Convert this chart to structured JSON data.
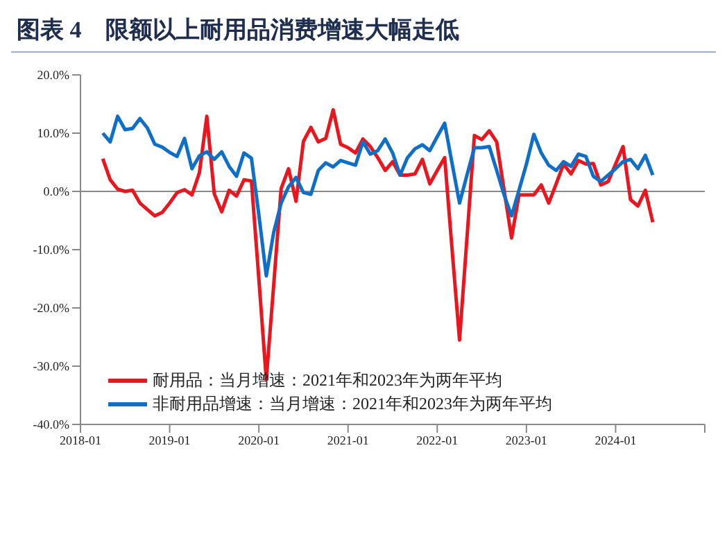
{
  "chart_data": {
    "type": "line",
    "title": "图表 4　限额以上耐用品消费增速大幅走低",
    "x": [
      "2018-04",
      "2018-05",
      "2018-06",
      "2018-07",
      "2018-08",
      "2018-09",
      "2018-10",
      "2018-11",
      "2018-12",
      "2019-01",
      "2019-02",
      "2019-03",
      "2019-04",
      "2019-05",
      "2019-06",
      "2019-07",
      "2019-08",
      "2019-09",
      "2019-10",
      "2019-11",
      "2019-12",
      "2020-01",
      "2020-02",
      "2020-03",
      "2020-04",
      "2020-05",
      "2020-06",
      "2020-07",
      "2020-08",
      "2020-09",
      "2020-10",
      "2020-11",
      "2020-12",
      "2021-01",
      "2021-02",
      "2021-03",
      "2021-04",
      "2021-05",
      "2021-06",
      "2021-07",
      "2021-08",
      "2021-09",
      "2021-10",
      "2021-11",
      "2021-12",
      "2022-01",
      "2022-02",
      "2022-03",
      "2022-04",
      "2022-05",
      "2022-06",
      "2022-07",
      "2022-08",
      "2022-09",
      "2022-10",
      "2022-11",
      "2022-12",
      "2023-01",
      "2023-02",
      "2023-03",
      "2023-04",
      "2023-05",
      "2023-06",
      "2023-07",
      "2023-08",
      "2023-09",
      "2023-10",
      "2023-11",
      "2023-12",
      "2024-01",
      "2024-02",
      "2024-03",
      "2024-04",
      "2024-05",
      "2024-06"
    ],
    "series": [
      {
        "name": "耐用品：当月增速：2021年和2023年为两年平均",
        "color": "#e8171f",
        "values": [
          5.6,
          2.0,
          0.4,
          0,
          0.2,
          -2.0,
          -3.1,
          -4.2,
          -3.6,
          -2.0,
          -0.2,
          0.3,
          -0.6,
          3.2,
          12.9,
          -0.4,
          -3.5,
          0.2,
          -0.8,
          2.0,
          1.8,
          -15,
          -32.3,
          -16,
          0.5,
          3.9,
          -1.7,
          8.6,
          11.0,
          8.5,
          9.1,
          14.0,
          8.1,
          7.5,
          6.6,
          9.0,
          7.7,
          5.8,
          3.6,
          5.1,
          2.8,
          2.8,
          3.0,
          5.5,
          1.3,
          3.6,
          5.8,
          -10,
          -25.5,
          -8,
          9.6,
          8.9,
          10.4,
          8.5,
          0.2,
          -8.0,
          -0.6,
          -0.6,
          -0.6,
          1.1,
          -2.0,
          1.3,
          4.7,
          3.0,
          5.3,
          4.7,
          4.8,
          1.1,
          1.7,
          4.7,
          7.7,
          -1.4,
          -2.5,
          0.2,
          -5.3
        ]
      },
      {
        "name": "非耐用品增速：当月增速：2021年和2023年为两年平均",
        "color": "#0f6fc6",
        "values": [
          10.0,
          8.5,
          12.9,
          10.6,
          10.8,
          12.5,
          10.9,
          8.1,
          7.6,
          6.7,
          6.0,
          9.1,
          3.9,
          6.1,
          6.8,
          5.5,
          6.8,
          4.3,
          2.6,
          6.6,
          5.7,
          -4,
          -14.5,
          -7,
          -2,
          0.8,
          2.4,
          -0.2,
          -0.5,
          3.6,
          4.9,
          4.2,
          5.3,
          4.9,
          4.5,
          8.5,
          6.4,
          7.0,
          9.0,
          6.6,
          2.8,
          5.8,
          7.3,
          8.0,
          7.0,
          9.4,
          11.7,
          4.8,
          -2.0,
          2.8,
          7.5,
          7.5,
          7.7,
          3.6,
          -0.6,
          -4.2,
          0.2,
          4.7,
          9.8,
          6.6,
          4.5,
          3.6,
          5.1,
          4.3,
          6.4,
          6.0,
          2.6,
          1.7,
          2.8,
          3.9,
          5.1,
          5.5,
          3.9,
          6.2,
          2.8
        ]
      }
    ],
    "xlim": [
      "2018-01",
      "2025-01"
    ],
    "xticks": [
      "2018-01",
      "2019-01",
      "2020-01",
      "2021-01",
      "2022-01",
      "2023-01",
      "2024-01",
      {
        "value": "2025-01",
        "label": null
      }
    ],
    "ylim": [
      -40,
      20
    ],
    "yticks": [
      {
        "value": -40,
        "label": "-40.0%"
      },
      {
        "value": -30,
        "label": "-30.0%"
      },
      {
        "value": -20,
        "label": "-20.0%"
      },
      {
        "value": -10,
        "label": "-10.0%"
      },
      {
        "value": 0,
        "label": "0.0%"
      },
      {
        "value": 10,
        "label": "10.0%"
      },
      {
        "value": 20,
        "label": "20.0%"
      }
    ],
    "legend": "bottom left",
    "marker": "none",
    "line_style": "solid"
  }
}
